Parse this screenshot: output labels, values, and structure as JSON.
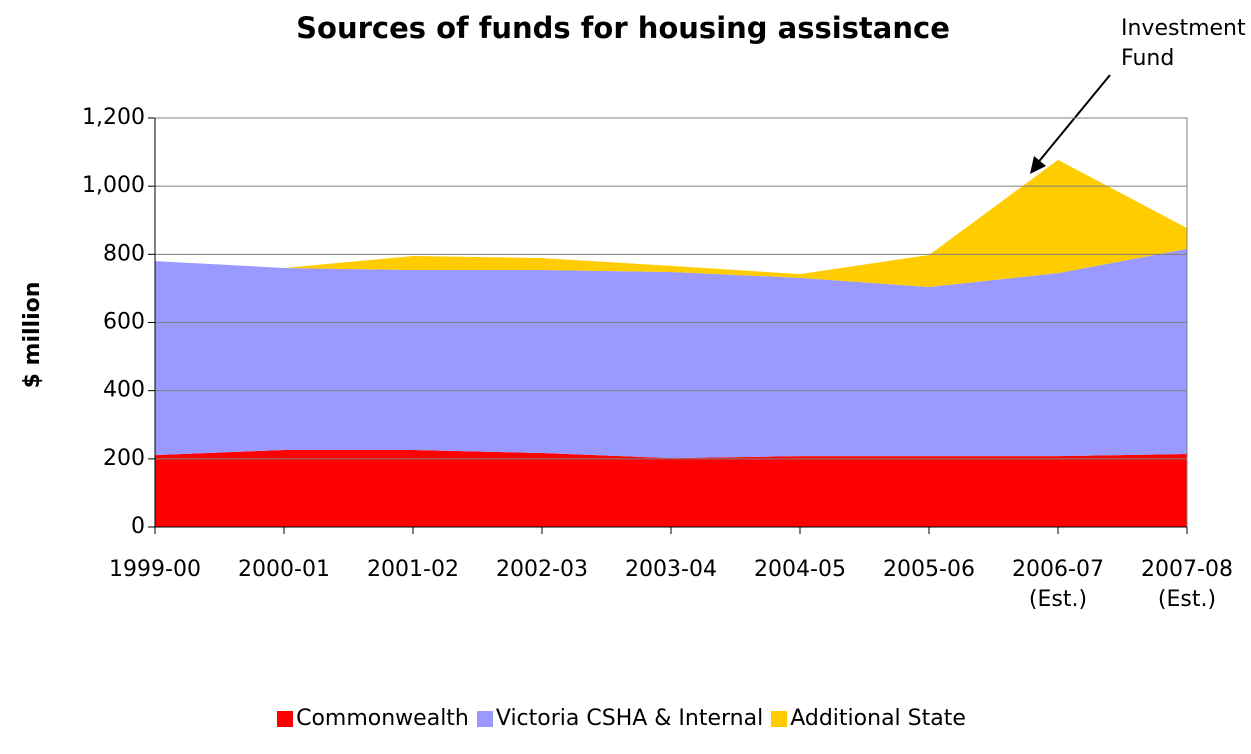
{
  "chart_data": {
    "type": "area",
    "stacked": true,
    "title": "Sources of funds for housing assistance",
    "y_label": "$ million",
    "annotation": "Investment Fund",
    "categories": [
      "1999-00",
      "2000-01",
      "2001-02",
      "2002-03",
      "2003-04",
      "2004-05",
      "2005-06",
      "2006-07 (Est.)",
      "2007-08 (Est.)"
    ],
    "series": [
      {
        "name": "Commonwealth",
        "color": "#ff0000",
        "values": [
          211,
          226,
          226,
          217,
          202,
          208,
          208,
          208,
          214
        ]
      },
      {
        "name": "Victoria CSHA & Internal",
        "color": "#9999ff",
        "values": [
          569,
          534,
          528,
          537,
          546,
          523,
          496,
          537,
          602
        ]
      },
      {
        "name": "Additional State",
        "color": "#ffcc00",
        "values": [
          0,
          0,
          41,
          35,
          18,
          11,
          94,
          332,
          61
        ]
      }
    ],
    "ylim": [
      0,
      1200
    ],
    "yticks": [
      0,
      200,
      400,
      600,
      800,
      {
        "value": 1000,
        "label": "1,000"
      },
      {
        "value": 1200,
        "label": "1,200"
      }
    ],
    "grid": true,
    "legend": "bottom"
  }
}
